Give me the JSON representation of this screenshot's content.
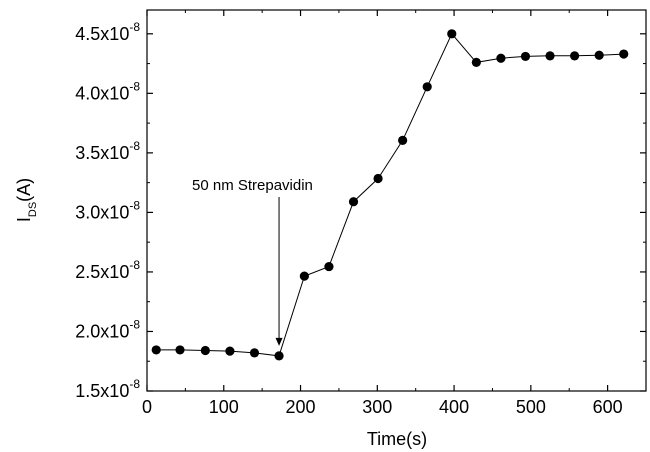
{
  "chart_data": {
    "type": "line",
    "title": "",
    "xlabel": "Time(s)",
    "ylabel": {
      "base": "I",
      "sub": "DS",
      "suffix": "(A)"
    },
    "xlim": [
      0,
      650
    ],
    "ylim": [
      1.5e-08,
      4.7e-08
    ],
    "x_ticks": [
      0,
      100,
      200,
      300,
      400,
      500,
      600
    ],
    "x_tick_labels": [
      "0",
      "100",
      "200",
      "300",
      "400",
      "500",
      "600"
    ],
    "y_ticks": [
      1.5e-08,
      2e-08,
      2.5e-08,
      3e-08,
      3.5e-08,
      4e-08,
      4.5e-08
    ],
    "y_tick_labels": [
      {
        "mantissa": "1.5x10",
        "exp": "-8"
      },
      {
        "mantissa": "2.0x10",
        "exp": "-8"
      },
      {
        "mantissa": "2.5x10",
        "exp": "-8"
      },
      {
        "mantissa": "3.0x10",
        "exp": "-8"
      },
      {
        "mantissa": "3.5x10",
        "exp": "-8"
      },
      {
        "mantissa": "4.0x10",
        "exp": "-8"
      },
      {
        "mantissa": "4.5x10",
        "exp": "-8"
      }
    ],
    "grid": false,
    "series": [
      {
        "marker": "filled-circle",
        "color": "#000000",
        "x": [
          12,
          43,
          76,
          108,
          140,
          172,
          205,
          237,
          269,
          301,
          333,
          365,
          397,
          429,
          461,
          493,
          525,
          557,
          589,
          621
        ],
        "y": [
          1.845e-08,
          1.845e-08,
          1.84e-08,
          1.835e-08,
          1.82e-08,
          1.795e-08,
          2.465e-08,
          2.545e-08,
          3.09e-08,
          3.285e-08,
          3.605e-08,
          4.055e-08,
          4.5e-08,
          4.26e-08,
          4.295e-08,
          4.31e-08,
          4.315e-08,
          4.315e-08,
          4.32e-08,
          4.33e-08
        ]
      }
    ],
    "annotations": [
      {
        "text": "50 nm Strepavidin",
        "x": 172,
        "y": 1.795e-08
      }
    ]
  }
}
